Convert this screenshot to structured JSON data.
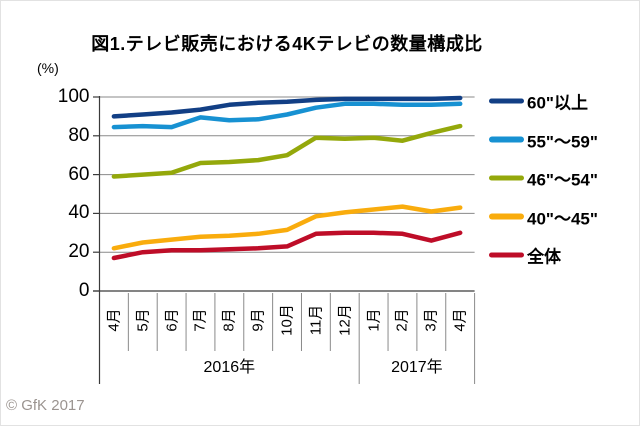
{
  "title": "図1.テレビ販売における4Kテレビの数量構成比",
  "y_axis_unit": "(%)",
  "watermark": "© GfK 2017",
  "chart_data": {
    "type": "line",
    "title": "図1.テレビ販売における4Kテレビの数量構成比",
    "ylabel": "(%)",
    "ylim": [
      0,
      100
    ],
    "y_ticks": [
      0,
      20,
      40,
      60,
      80,
      100
    ],
    "grid": "horizontal",
    "legend_position": "right",
    "categories": [
      "4月",
      "5月",
      "6月",
      "7月",
      "8月",
      "9月",
      "10月",
      "11月",
      "12月",
      "1月",
      "2月",
      "3月",
      "4月"
    ],
    "year_groups": [
      {
        "label": "2016年",
        "start_index": 0,
        "count": 9
      },
      {
        "label": "2017年",
        "start_index": 9,
        "count": 4
      }
    ],
    "series": [
      {
        "name": "60\"以上",
        "color": "#123f85",
        "values": [
          90,
          91,
          92,
          93.5,
          96,
          97,
          97.5,
          98.5,
          99,
          99,
          99,
          99,
          99.5
        ]
      },
      {
        "name": "55\"〜59\"",
        "color": "#1791d2",
        "values": [
          84.5,
          85,
          84.5,
          89.5,
          88,
          88.5,
          91,
          94.5,
          96.5,
          96.5,
          96,
          96,
          96.5
        ]
      },
      {
        "name": "46\"〜54\"",
        "color": "#94a80b",
        "values": [
          59,
          60,
          61,
          66,
          66.5,
          67.5,
          70,
          79,
          78.5,
          79,
          77.5,
          81.5,
          85
        ]
      },
      {
        "name": "40\"〜45\"",
        "color": "#f9ac0d",
        "values": [
          22,
          25,
          26.5,
          28,
          28.5,
          29.5,
          31.5,
          38.5,
          40.5,
          42,
          43.5,
          41,
          43
        ]
      },
      {
        "name": "全体",
        "color": "#be0d28",
        "values": [
          17,
          20,
          21,
          21,
          21.5,
          22,
          23,
          29.5,
          30,
          30,
          29.5,
          26,
          30
        ]
      }
    ]
  }
}
